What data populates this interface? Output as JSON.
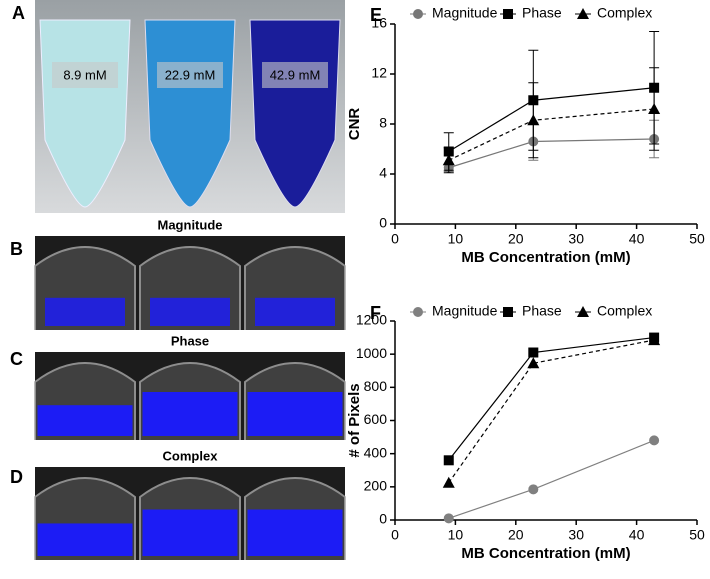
{
  "figure": {
    "panel_labels": [
      "A",
      "B",
      "C",
      "D"
    ],
    "tube_labels": [
      "8.9 mM",
      "22.9 mM",
      "42.9 mM"
    ],
    "image_titles": [
      "Magnitude",
      "Phase",
      "Complex"
    ]
  },
  "chart_data": [
    {
      "type": "line",
      "label": "E",
      "ylabel": "CNR",
      "xlabel": "MB Concentration (mM)",
      "xlim": [
        0,
        50
      ],
      "xticks": [
        0,
        10,
        20,
        30,
        40,
        50
      ],
      "ylim": [
        0,
        16
      ],
      "yticks": [
        0,
        4,
        8,
        12,
        16
      ],
      "series": [
        {
          "name": "Magnitude",
          "color": "#777777",
          "marker": "circle",
          "linestyle": "solid",
          "x": [
            8.9,
            22.9,
            42.9
          ],
          "values": [
            4.5,
            6.6,
            6.8
          ],
          "errors": [
            0.3,
            1.5,
            1.5
          ]
        },
        {
          "name": "Phase",
          "color": "#000000",
          "marker": "square",
          "linestyle": "solid",
          "x": [
            8.9,
            22.9,
            42.9
          ],
          "values": [
            5.8,
            9.9,
            10.9
          ],
          "errors": [
            1.5,
            4.0,
            4.5
          ]
        },
        {
          "name": "Complex",
          "color": "#000000",
          "marker": "triangle",
          "linestyle": "dashed",
          "x": [
            8.9,
            22.9,
            42.9
          ],
          "values": [
            5.1,
            8.3,
            9.2
          ],
          "errors": [
            1.0,
            3.0,
            3.3
          ]
        }
      ]
    },
    {
      "type": "line",
      "label": "F",
      "ylabel": "# of Pixels",
      "xlabel": "MB Concentration (mM)",
      "xlim": [
        0,
        50
      ],
      "xticks": [
        0,
        10,
        20,
        30,
        40,
        50
      ],
      "ylim": [
        0,
        1200
      ],
      "yticks": [
        0,
        200,
        400,
        600,
        800,
        1000,
        1200
      ],
      "series": [
        {
          "name": "Magnitude",
          "color": "#808080",
          "marker": "circle",
          "linestyle": "solid",
          "x": [
            8.9,
            22.9,
            42.9
          ],
          "values": [
            10,
            185,
            480
          ]
        },
        {
          "name": "Phase",
          "color": "#000000",
          "marker": "square",
          "linestyle": "solid",
          "x": [
            8.9,
            22.9,
            42.9
          ],
          "values": [
            360,
            1010,
            1100
          ]
        },
        {
          "name": "Complex",
          "color": "#000000",
          "marker": "triangle",
          "linestyle": "dashed",
          "x": [
            8.9,
            22.9,
            42.9
          ],
          "values": [
            225,
            945,
            1085
          ]
        }
      ]
    }
  ]
}
